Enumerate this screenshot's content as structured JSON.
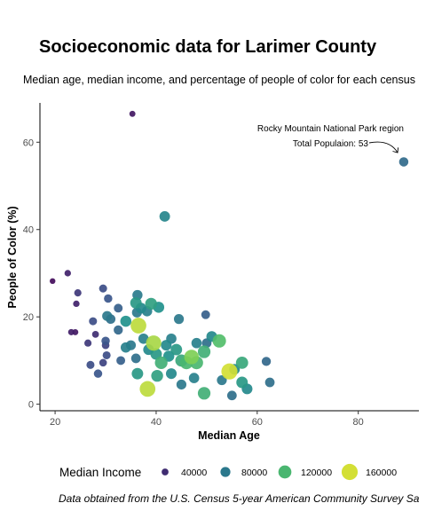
{
  "chart_data": {
    "type": "scatter",
    "title": "Socioeconomic data for Larimer County",
    "subtitle": "Median age, median income, and percentage of people of color for each census",
    "caption": "Data obtained from the U.S. Census 5-year American Community Survey Sa",
    "xlabel": "Median Age",
    "ylabel": "People of Color (%)",
    "xlim": [
      17,
      92
    ],
    "ylim": [
      -1.5,
      69
    ],
    "xticks": [
      20,
      40,
      60,
      80
    ],
    "yticks": [
      0,
      20,
      40,
      60
    ],
    "grid": false,
    "size_legend": {
      "title": "Median Income",
      "placement": "bottom",
      "entries": [
        40000,
        80000,
        120000,
        160000
      ]
    },
    "annotation": {
      "lines": [
        "Rocky Mountain National Park region",
        "Total Populaion: 53"
      ],
      "target": [
        89,
        55.5
      ]
    },
    "points": [
      {
        "x": 35.3,
        "y": 66.5,
        "income": 30000
      },
      {
        "x": 89.0,
        "y": 55.5,
        "income": 72000
      },
      {
        "x": 41.7,
        "y": 43.0,
        "income": 88000
      },
      {
        "x": 19.5,
        "y": 28.2,
        "income": 25000
      },
      {
        "x": 22.5,
        "y": 30.0,
        "income": 35000
      },
      {
        "x": 24.5,
        "y": 25.5,
        "income": 45000
      },
      {
        "x": 24.2,
        "y": 23.0,
        "income": 35000
      },
      {
        "x": 23.2,
        "y": 16.5,
        "income": 33000
      },
      {
        "x": 24.0,
        "y": 16.5,
        "income": 30000
      },
      {
        "x": 27.5,
        "y": 19.0,
        "income": 55000
      },
      {
        "x": 28.0,
        "y": 16.0,
        "income": 40000
      },
      {
        "x": 26.5,
        "y": 14.0,
        "income": 45000
      },
      {
        "x": 29.5,
        "y": 26.5,
        "income": 55000
      },
      {
        "x": 30.5,
        "y": 24.2,
        "income": 60000
      },
      {
        "x": 30.3,
        "y": 20.2,
        "income": 80000
      },
      {
        "x": 31.0,
        "y": 19.5,
        "income": 75000
      },
      {
        "x": 32.5,
        "y": 22.0,
        "income": 65000
      },
      {
        "x": 32.5,
        "y": 17.0,
        "income": 70000
      },
      {
        "x": 30.0,
        "y": 14.5,
        "income": 60000
      },
      {
        "x": 30.0,
        "y": 13.5,
        "income": 50000
      },
      {
        "x": 30.2,
        "y": 11.2,
        "income": 55000
      },
      {
        "x": 29.5,
        "y": 9.5,
        "income": 50000
      },
      {
        "x": 27.0,
        "y": 9.0,
        "income": 55000
      },
      {
        "x": 28.5,
        "y": 7.0,
        "income": 60000
      },
      {
        "x": 34.0,
        "y": 19.0,
        "income": 95000
      },
      {
        "x": 36.3,
        "y": 25.0,
        "income": 82000
      },
      {
        "x": 36.0,
        "y": 23.2,
        "income": 100000
      },
      {
        "x": 36.2,
        "y": 21.0,
        "income": 80000
      },
      {
        "x": 37.0,
        "y": 22.0,
        "income": 90000
      },
      {
        "x": 38.2,
        "y": 21.3,
        "income": 85000
      },
      {
        "x": 39.0,
        "y": 23.0,
        "income": 105000
      },
      {
        "x": 40.5,
        "y": 22.2,
        "income": 95000
      },
      {
        "x": 36.5,
        "y": 18.0,
        "income": 155000
      },
      {
        "x": 34.0,
        "y": 13.0,
        "income": 85000
      },
      {
        "x": 35.0,
        "y": 13.5,
        "income": 80000
      },
      {
        "x": 37.5,
        "y": 15.0,
        "income": 85000
      },
      {
        "x": 39.5,
        "y": 14.0,
        "income": 150000
      },
      {
        "x": 38.5,
        "y": 12.5,
        "income": 90000
      },
      {
        "x": 40.0,
        "y": 11.5,
        "income": 100000
      },
      {
        "x": 41.0,
        "y": 9.5,
        "income": 115000
      },
      {
        "x": 42.0,
        "y": 13.5,
        "income": 90000
      },
      {
        "x": 43.0,
        "y": 15.0,
        "income": 85000
      },
      {
        "x": 42.5,
        "y": 11.0,
        "income": 95000
      },
      {
        "x": 44.0,
        "y": 12.5,
        "income": 100000
      },
      {
        "x": 45.0,
        "y": 10.0,
        "income": 110000
      },
      {
        "x": 46.0,
        "y": 9.5,
        "income": 120000
      },
      {
        "x": 47.0,
        "y": 10.8,
        "income": 140000
      },
      {
        "x": 48.0,
        "y": 9.5,
        "income": 120000
      },
      {
        "x": 44.5,
        "y": 19.5,
        "income": 80000
      },
      {
        "x": 48.0,
        "y": 14.0,
        "income": 85000
      },
      {
        "x": 49.5,
        "y": 12.0,
        "income": 115000
      },
      {
        "x": 50.0,
        "y": 14.0,
        "income": 75000
      },
      {
        "x": 49.8,
        "y": 20.5,
        "income": 65000
      },
      {
        "x": 51.0,
        "y": 15.5,
        "income": 90000
      },
      {
        "x": 52.5,
        "y": 14.5,
        "income": 125000
      },
      {
        "x": 54.5,
        "y": 7.5,
        "income": 160000
      },
      {
        "x": 55.5,
        "y": 8.0,
        "income": 90000
      },
      {
        "x": 57.0,
        "y": 9.5,
        "income": 110000
      },
      {
        "x": 53.0,
        "y": 5.5,
        "income": 80000
      },
      {
        "x": 55.0,
        "y": 2.0,
        "income": 75000
      },
      {
        "x": 57.0,
        "y": 5.0,
        "income": 100000
      },
      {
        "x": 58.0,
        "y": 3.5,
        "income": 90000
      },
      {
        "x": 61.8,
        "y": 9.8,
        "income": 70000
      },
      {
        "x": 62.5,
        "y": 5.0,
        "income": 75000
      },
      {
        "x": 36.3,
        "y": 7.0,
        "income": 100000
      },
      {
        "x": 38.3,
        "y": 3.5,
        "income": 155000
      },
      {
        "x": 40.2,
        "y": 6.5,
        "income": 105000
      },
      {
        "x": 43.0,
        "y": 7.0,
        "income": 90000
      },
      {
        "x": 45.0,
        "y": 4.5,
        "income": 80000
      },
      {
        "x": 47.5,
        "y": 6.0,
        "income": 85000
      },
      {
        "x": 49.5,
        "y": 2.5,
        "income": 115000
      },
      {
        "x": 36.0,
        "y": 10.5,
        "income": 75000
      },
      {
        "x": 33.0,
        "y": 10.0,
        "income": 65000
      }
    ]
  }
}
